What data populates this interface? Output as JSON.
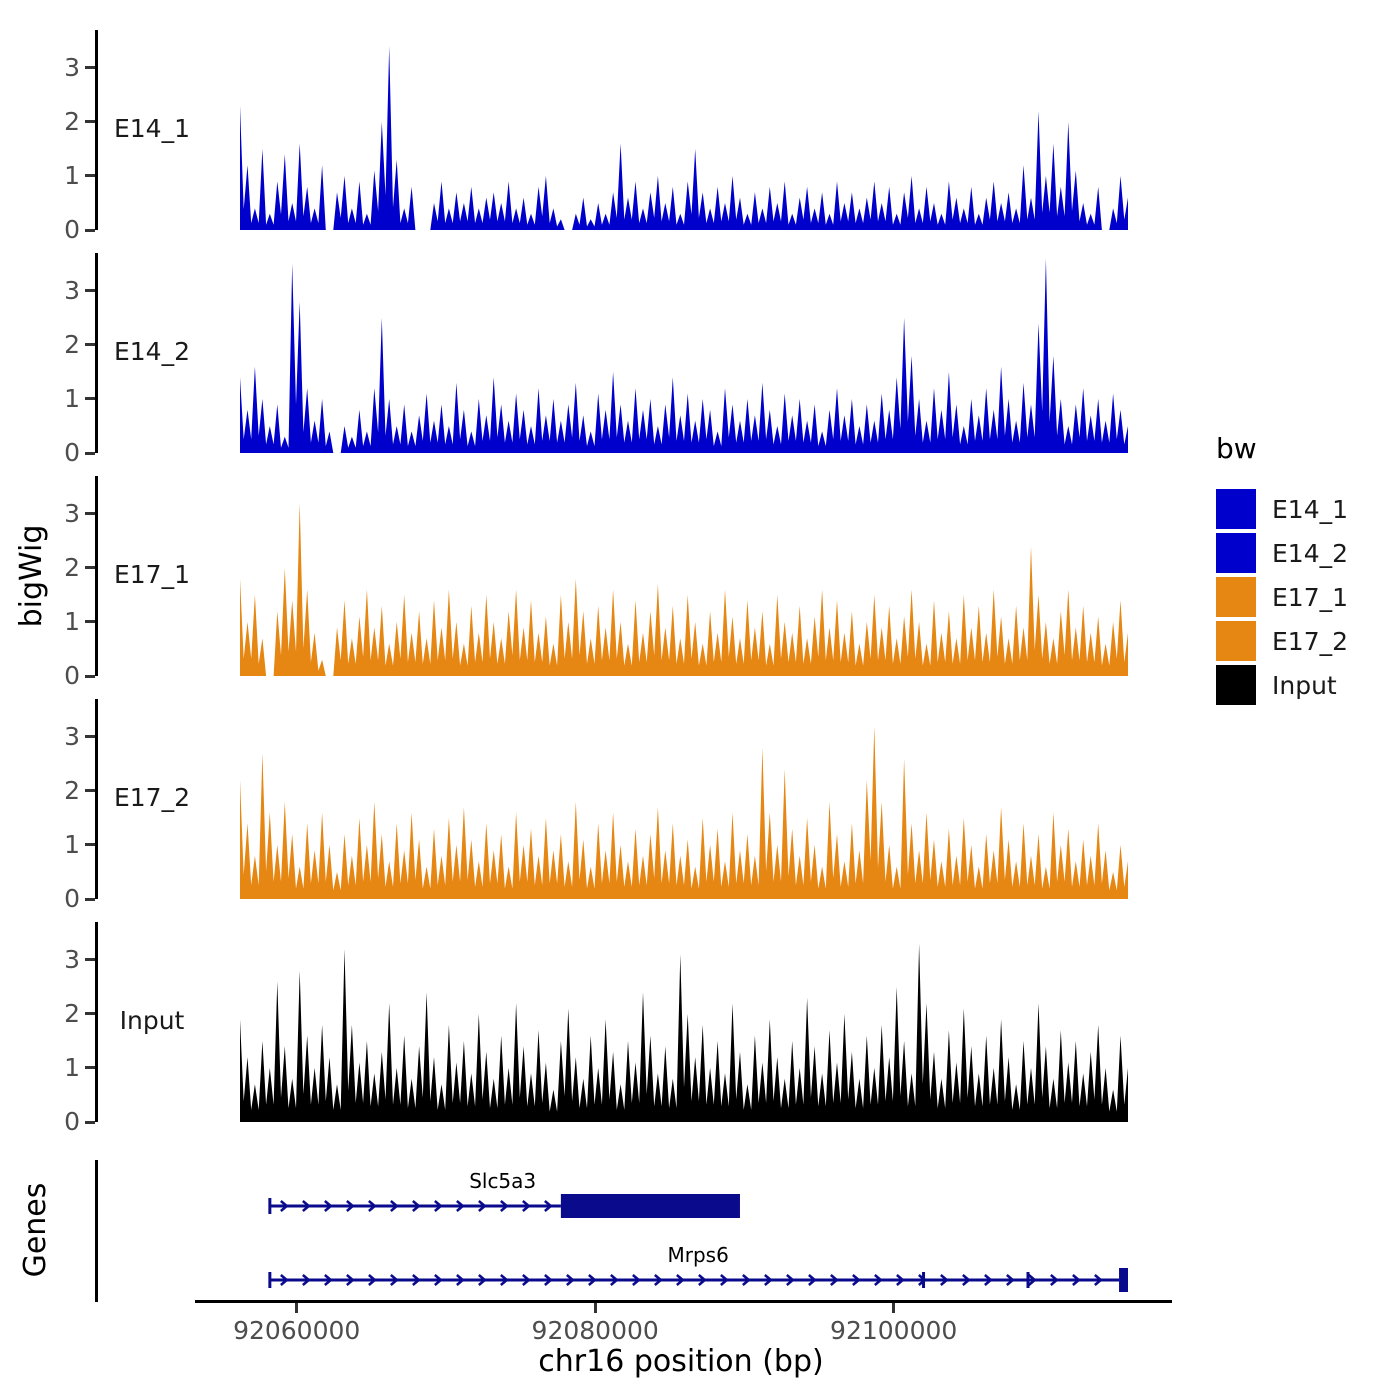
{
  "chart_data": {
    "type": "area",
    "title": "",
    "xlabel": "chr16 position (bp)",
    "ylabel": "bigWig",
    "x_range": [
      92056000,
      92115500
    ],
    "x_ticks": [
      92060000,
      92080000,
      92100000
    ],
    "y_ticks": [
      0,
      1,
      2,
      3
    ],
    "ylim": [
      0,
      3.7
    ],
    "grid": false,
    "legend_position": "right",
    "tracks": [
      {
        "name": "E14_1",
        "color": "#0000CD",
        "values": [
          2.3,
          1.2,
          0.4,
          1.5,
          0.3,
          0.9,
          1.4,
          0.5,
          1.6,
          0.8,
          0.4,
          1.2,
          0,
          0.7,
          1.0,
          0.4,
          0.9,
          0.3,
          1.1,
          2.0,
          3.4,
          1.3,
          0.4,
          0.8,
          0,
          0,
          0.5,
          0.9,
          0.4,
          0.7,
          0.5,
          0.8,
          0.4,
          0.6,
          0.7,
          0.5,
          0.9,
          0.4,
          0.6,
          0.3,
          0.8,
          1.0,
          0.4,
          0.2,
          0,
          0.3,
          0.6,
          0.2,
          0.5,
          0.3,
          0.7,
          1.6,
          0.6,
          0.9,
          0.4,
          0.7,
          1.0,
          0.5,
          0.8,
          0.3,
          0.9,
          1.5,
          0.7,
          0.4,
          0.8,
          0.5,
          1.0,
          0.6,
          0.3,
          0.7,
          0.4,
          0.8,
          0.5,
          0.9,
          0.3,
          0.6,
          0.8,
          0.4,
          0.7,
          0.3,
          0.9,
          0.5,
          0.7,
          0.4,
          0.6,
          0.9,
          0.5,
          0.8,
          0.3,
          0.7,
          1.0,
          0.4,
          0.8,
          0.5,
          0.3,
          0.9,
          0.6,
          0.4,
          0.8,
          0.3,
          0.6,
          0.9,
          0.5,
          0.7,
          0.4,
          1.2,
          0.6,
          2.2,
          1.0,
          1.6,
          0.8,
          2.0,
          1.1,
          0.5,
          0.3,
          0.8,
          0,
          0.4,
          1.0,
          0.6
        ]
      },
      {
        "name": "E14_2",
        "color": "#0000CD",
        "values": [
          1.4,
          0.8,
          1.6,
          1.0,
          0.5,
          0.9,
          0.3,
          3.5,
          2.8,
          1.2,
          0.6,
          1.0,
          0.4,
          0,
          0.5,
          0.3,
          0.8,
          0.4,
          1.2,
          2.5,
          1.0,
          0.5,
          0.9,
          0.4,
          0.7,
          1.1,
          0.6,
          0.9,
          0.5,
          1.3,
          0.8,
          0.4,
          1.0,
          0.7,
          1.4,
          0.9,
          0.6,
          1.1,
          0.8,
          0.5,
          1.2,
          0.7,
          1.0,
          0.6,
          0.9,
          1.3,
          0.7,
          0.4,
          1.1,
          0.8,
          1.5,
          0.9,
          0.6,
          1.2,
          0.8,
          1.0,
          0.5,
          0.9,
          1.4,
          0.7,
          1.1,
          0.6,
          1.0,
          0.8,
          0.4,
          1.2,
          0.9,
          0.6,
          1.0,
          0.7,
          1.3,
          0.8,
          0.5,
          1.1,
          0.7,
          1.0,
          0.6,
          0.9,
          0.4,
          0.8,
          1.2,
          0.7,
          1.0,
          0.5,
          0.9,
          0.6,
          1.1,
          0.8,
          1.4,
          2.5,
          1.8,
          1.0,
          0.6,
          1.2,
          0.8,
          1.5,
          0.9,
          0.5,
          1.0,
          0.7,
          1.2,
          0.8,
          1.6,
          1.0,
          0.6,
          1.3,
          0.9,
          2.4,
          3.6,
          1.8,
          1.0,
          0.5,
          0.9,
          1.2,
          0.7,
          1.0,
          0.6,
          1.1,
          0.8,
          0.5
        ]
      },
      {
        "name": "E17_1",
        "color": "#E68613",
        "values": [
          1.8,
          1.0,
          1.5,
          0.7,
          0,
          1.2,
          2.0,
          1.4,
          3.2,
          1.6,
          0.8,
          0.3,
          0,
          0.9,
          1.4,
          0.7,
          1.1,
          1.6,
          0.9,
          1.3,
          0.6,
          1.0,
          1.5,
          0.8,
          1.2,
          0.7,
          1.4,
          0.9,
          1.6,
          1.0,
          0.6,
          1.3,
          0.8,
          1.5,
          1.0,
          0.7,
          1.2,
          1.6,
          0.9,
          1.4,
          0.8,
          1.1,
          0.6,
          1.5,
          1.0,
          1.8,
          1.2,
          0.7,
          1.3,
          0.9,
          1.6,
          1.0,
          0.6,
          1.4,
          0.8,
          1.2,
          1.7,
          0.9,
          1.3,
          0.7,
          1.5,
          1.0,
          0.6,
          1.2,
          0.8,
          1.6,
          1.1,
          0.7,
          1.4,
          0.9,
          1.2,
          0.6,
          1.5,
          1.0,
          0.8,
          1.3,
          0.7,
          1.1,
          1.6,
          0.9,
          1.4,
          0.8,
          1.2,
          0.6,
          1.0,
          1.5,
          0.9,
          1.3,
          0.7,
          1.1,
          1.6,
          1.0,
          0.6,
          1.4,
          0.8,
          1.2,
          0.7,
          1.5,
          0.9,
          1.3,
          0.8,
          1.6,
          1.1,
          0.7,
          1.3,
          0.9,
          2.4,
          1.5,
          1.0,
          0.7,
          1.2,
          1.6,
          0.9,
          1.3,
          0.8,
          1.1,
          0.6,
          1.0,
          1.4,
          0.8
        ]
      },
      {
        "name": "E17_2",
        "color": "#E68613",
        "values": [
          2.2,
          1.4,
          0.8,
          2.7,
          1.6,
          1.0,
          1.8,
          1.2,
          0.6,
          1.4,
          0.9,
          1.6,
          1.0,
          0.5,
          1.2,
          0.8,
          1.5,
          1.0,
          1.8,
          1.2,
          0.7,
          1.4,
          0.9,
          1.6,
          1.1,
          0.6,
          1.3,
          0.8,
          1.5,
          1.0,
          1.7,
          1.1,
          0.7,
          1.4,
          0.9,
          1.2,
          0.6,
          1.6,
          1.0,
          1.3,
          0.8,
          1.5,
          0.9,
          1.2,
          0.7,
          1.8,
          1.1,
          0.6,
          1.4,
          0.9,
          1.6,
          1.0,
          0.7,
          1.3,
          0.8,
          1.2,
          1.7,
          0.9,
          1.4,
          0.8,
          1.1,
          0.6,
          1.5,
          1.0,
          1.3,
          0.7,
          1.6,
          0.9,
          1.2,
          0.8,
          2.8,
          1.6,
          1.0,
          2.4,
          1.3,
          0.8,
          1.5,
          1.0,
          0.6,
          1.8,
          1.2,
          0.7,
          1.4,
          0.9,
          2.2,
          3.2,
          1.8,
          1.0,
          0.6,
          2.6,
          1.4,
          0.9,
          1.6,
          1.1,
          0.7,
          1.3,
          0.8,
          1.5,
          1.0,
          0.6,
          1.2,
          0.9,
          1.7,
          1.1,
          0.7,
          1.4,
          0.8,
          1.2,
          0.6,
          1.6,
          1.0,
          1.3,
          0.7,
          1.1,
          0.8,
          1.4,
          0.9,
          0.5,
          1.0,
          0.7
        ]
      },
      {
        "name": "Input",
        "color": "#000000",
        "values": [
          1.9,
          1.2,
          0.7,
          1.5,
          1.0,
          2.6,
          1.4,
          0.8,
          2.8,
          1.6,
          1.0,
          1.8,
          1.2,
          0.7,
          3.2,
          1.8,
          1.1,
          1.5,
          0.9,
          1.3,
          2.2,
          1.0,
          1.6,
          0.8,
          1.4,
          2.4,
          1.2,
          0.7,
          1.8,
          1.1,
          1.5,
          0.9,
          2.0,
          1.3,
          0.8,
          1.6,
          1.0,
          2.2,
          1.4,
          0.9,
          1.7,
          1.1,
          0.6,
          1.5,
          2.1,
          1.2,
          0.8,
          1.6,
          1.0,
          1.9,
          1.3,
          0.7,
          1.5,
          1.1,
          2.4,
          1.6,
          0.9,
          1.4,
          0.8,
          3.1,
          2.0,
          1.2,
          1.8,
          1.0,
          1.5,
          0.9,
          2.2,
          1.3,
          0.7,
          1.6,
          1.1,
          1.9,
          1.2,
          0.8,
          1.5,
          1.0,
          2.3,
          1.4,
          0.9,
          1.7,
          1.1,
          2.0,
          1.3,
          0.8,
          1.6,
          1.0,
          1.8,
          1.2,
          2.5,
          1.5,
          0.9,
          3.3,
          2.2,
          1.3,
          0.8,
          1.7,
          1.1,
          2.1,
          1.4,
          0.9,
          1.6,
          1.0,
          1.9,
          1.2,
          0.7,
          1.5,
          1.0,
          2.2,
          1.4,
          0.8,
          1.7,
          1.1,
          1.5,
          0.9,
          1.3,
          1.8,
          1.0,
          0.6,
          1.6,
          1.0
        ]
      }
    ],
    "genes": {
      "panel_label": "Genes",
      "color": "#0A0A8C",
      "items": [
        {
          "name": "Slc5a3",
          "strand": "+",
          "start": 92058000,
          "end": 92089500,
          "thick_start": 92077500,
          "thick_end": 92089500,
          "label_pos": 92073600,
          "exon_marks": []
        },
        {
          "name": "Mrps6",
          "strand": "+",
          "start": 92058000,
          "end": 92115500,
          "thick_start": 92114900,
          "thick_end": 92115500,
          "label_pos": 92086700,
          "exon_marks": [
            92101800,
            92108800
          ]
        }
      ]
    },
    "legend": {
      "title": "bw",
      "entries": [
        {
          "label": "E14_1",
          "color": "#0000CD"
        },
        {
          "label": "E14_2",
          "color": "#0000CD"
        },
        {
          "label": "E17_1",
          "color": "#E68613"
        },
        {
          "label": "E17_2",
          "color": "#E68613"
        },
        {
          "label": "Input",
          "color": "#000000"
        }
      ]
    }
  }
}
